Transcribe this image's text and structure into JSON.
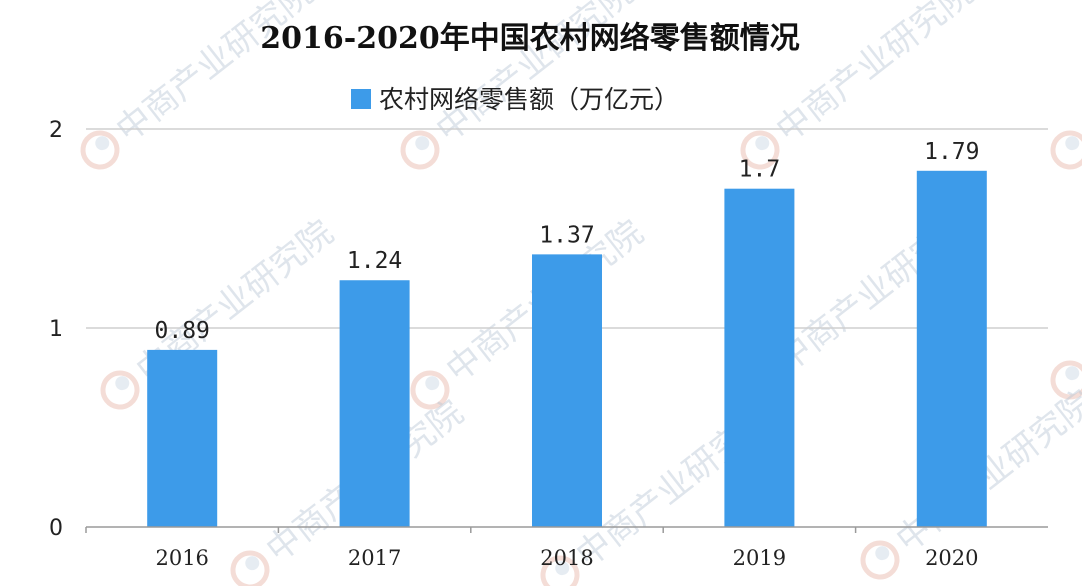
{
  "chart_data": {
    "type": "bar",
    "title": "2016-2020年中国农村网络零售额情况",
    "categories": [
      "2016",
      "2017",
      "2018",
      "2019",
      "2020"
    ],
    "series": [
      {
        "name": "农村网络零售额（万亿元）",
        "values": [
          0.89,
          1.24,
          1.37,
          1.7,
          1.79
        ],
        "labels": [
          "0.89",
          "1.24",
          "1.37",
          "1.7",
          "1.79"
        ],
        "color": "#3d9be9"
      }
    ],
    "ylim": [
      0,
      2
    ],
    "yticks": [
      "0",
      "1",
      "2"
    ],
    "grid": true,
    "legend": "top-center",
    "xlabel": "",
    "ylabel": ""
  },
  "watermark": {
    "text": "中商产业研究院",
    "color": "#b9c7d6"
  }
}
